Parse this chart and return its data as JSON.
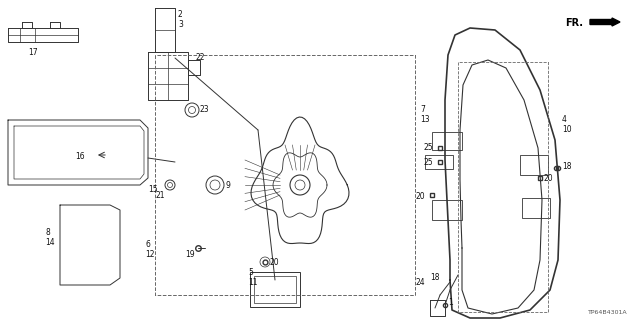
{
  "bg_color": "#ffffff",
  "diagram_id": "TP64B4301A",
  "text_color": "#111111",
  "line_color": "#333333",
  "dashed_color": "#666666"
}
